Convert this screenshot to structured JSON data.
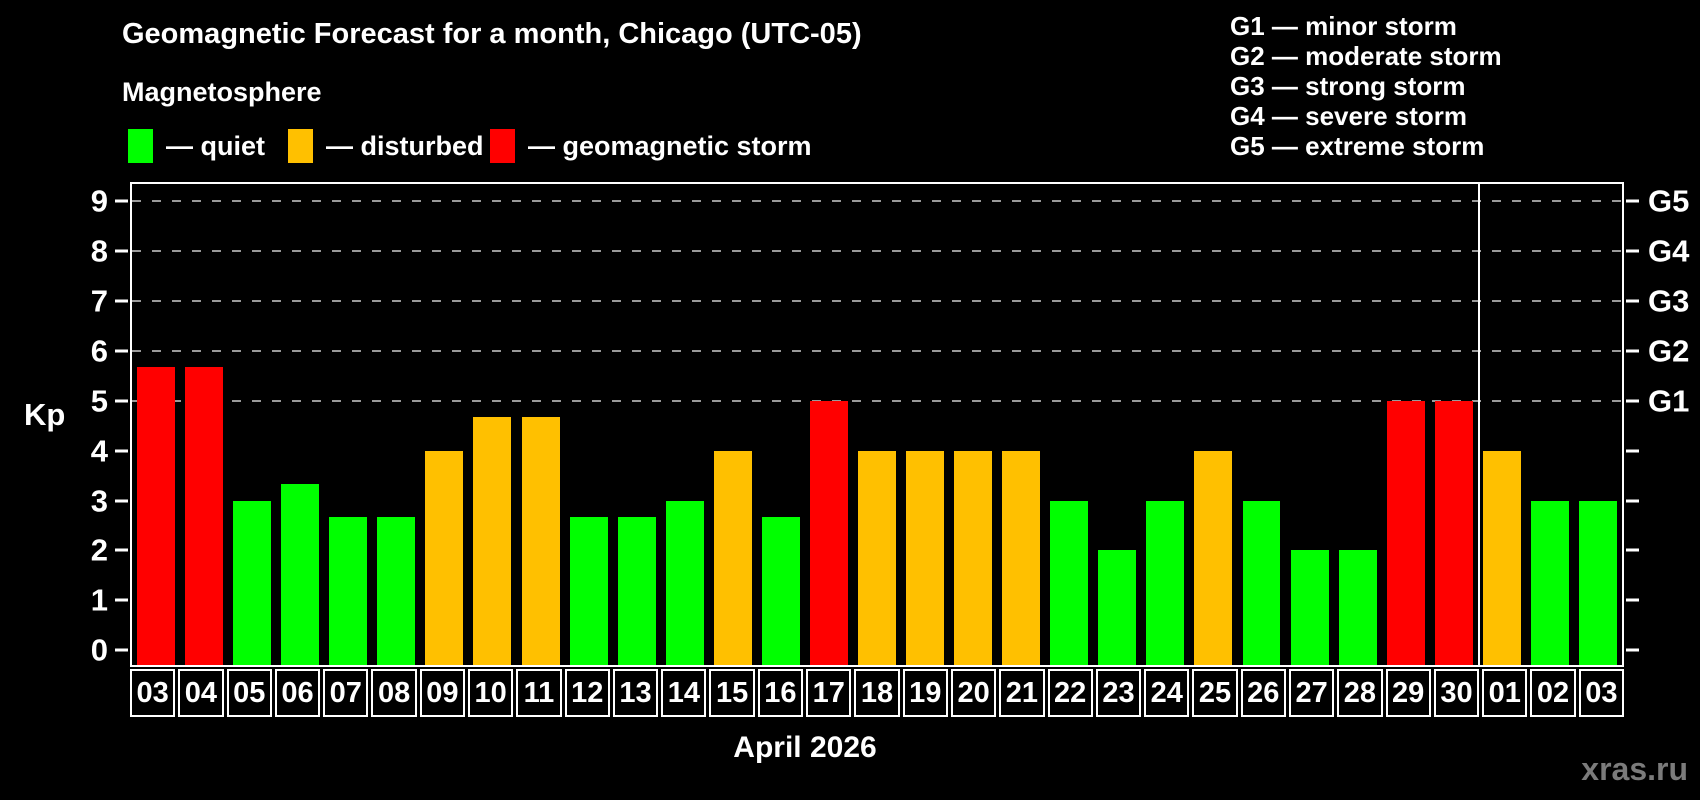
{
  "header": {
    "title": "Geomagnetic Forecast for a month, Chicago (UTC-05)",
    "subtitle": "Magnetosphere"
  },
  "magnetosphere_legend": [
    {
      "key": "quiet",
      "label": "— quiet",
      "color": "#00ff00"
    },
    {
      "key": "disturbed",
      "label": "— disturbed",
      "color": "#ffc000"
    },
    {
      "key": "storm",
      "label": "— geomagnetic storm",
      "color": "#ff0000"
    }
  ],
  "g_scale_legend": [
    "G1 — minor storm",
    "G2 — moderate storm",
    "G3 — strong storm",
    "G4 — severe storm",
    "G5 — extreme storm"
  ],
  "chart_data": {
    "type": "bar",
    "title": "Geomagnetic Forecast for a month, Chicago (UTC-05)",
    "ylabel": "Kp",
    "xlabel": "April 2026",
    "ylim": [
      0,
      9
    ],
    "y_ticks": [
      0,
      1,
      2,
      3,
      4,
      5,
      6,
      7,
      8,
      9
    ],
    "gridlines_at": [
      5,
      6,
      7,
      8,
      9
    ],
    "grid": "horizontal dashed gridlines at Kp 5-9 only",
    "legend_position": "top",
    "categories": [
      "03",
      "04",
      "05",
      "06",
      "07",
      "08",
      "09",
      "10",
      "11",
      "12",
      "13",
      "14",
      "15",
      "16",
      "17",
      "18",
      "19",
      "20",
      "21",
      "22",
      "23",
      "24",
      "25",
      "26",
      "27",
      "28",
      "29",
      "30",
      "01",
      "02",
      "03"
    ],
    "values": [
      5.67,
      5.67,
      3,
      3.33,
      2.67,
      2.67,
      4,
      4.67,
      4.67,
      2.67,
      2.67,
      3,
      4,
      2.67,
      5,
      4,
      4,
      4,
      4,
      3,
      2,
      3,
      4,
      3,
      2,
      2,
      5,
      5,
      4,
      3,
      3
    ],
    "statuses": [
      "storm",
      "storm",
      "quiet",
      "quiet",
      "quiet",
      "quiet",
      "disturbed",
      "disturbed",
      "disturbed",
      "quiet",
      "quiet",
      "quiet",
      "disturbed",
      "quiet",
      "storm",
      "disturbed",
      "disturbed",
      "disturbed",
      "disturbed",
      "quiet",
      "quiet",
      "quiet",
      "disturbed",
      "quiet",
      "quiet",
      "quiet",
      "storm",
      "storm",
      "disturbed",
      "quiet",
      "quiet"
    ],
    "right_axis_labels": [
      {
        "kp": 5,
        "label": "G1"
      },
      {
        "kp": 6,
        "label": "G2"
      },
      {
        "kp": 7,
        "label": "G3"
      },
      {
        "kp": 8,
        "label": "G4"
      },
      {
        "kp": 9,
        "label": "G5"
      }
    ],
    "month_separator_index": 28
  },
  "footer": {
    "month_label": "April 2026",
    "watermark": "xras.ru"
  },
  "colors": {
    "background": "#000000",
    "text": "#ffffff",
    "grid": "#9a9a9a",
    "axis": "#ffffff",
    "watermark": "#7b7b7b"
  }
}
